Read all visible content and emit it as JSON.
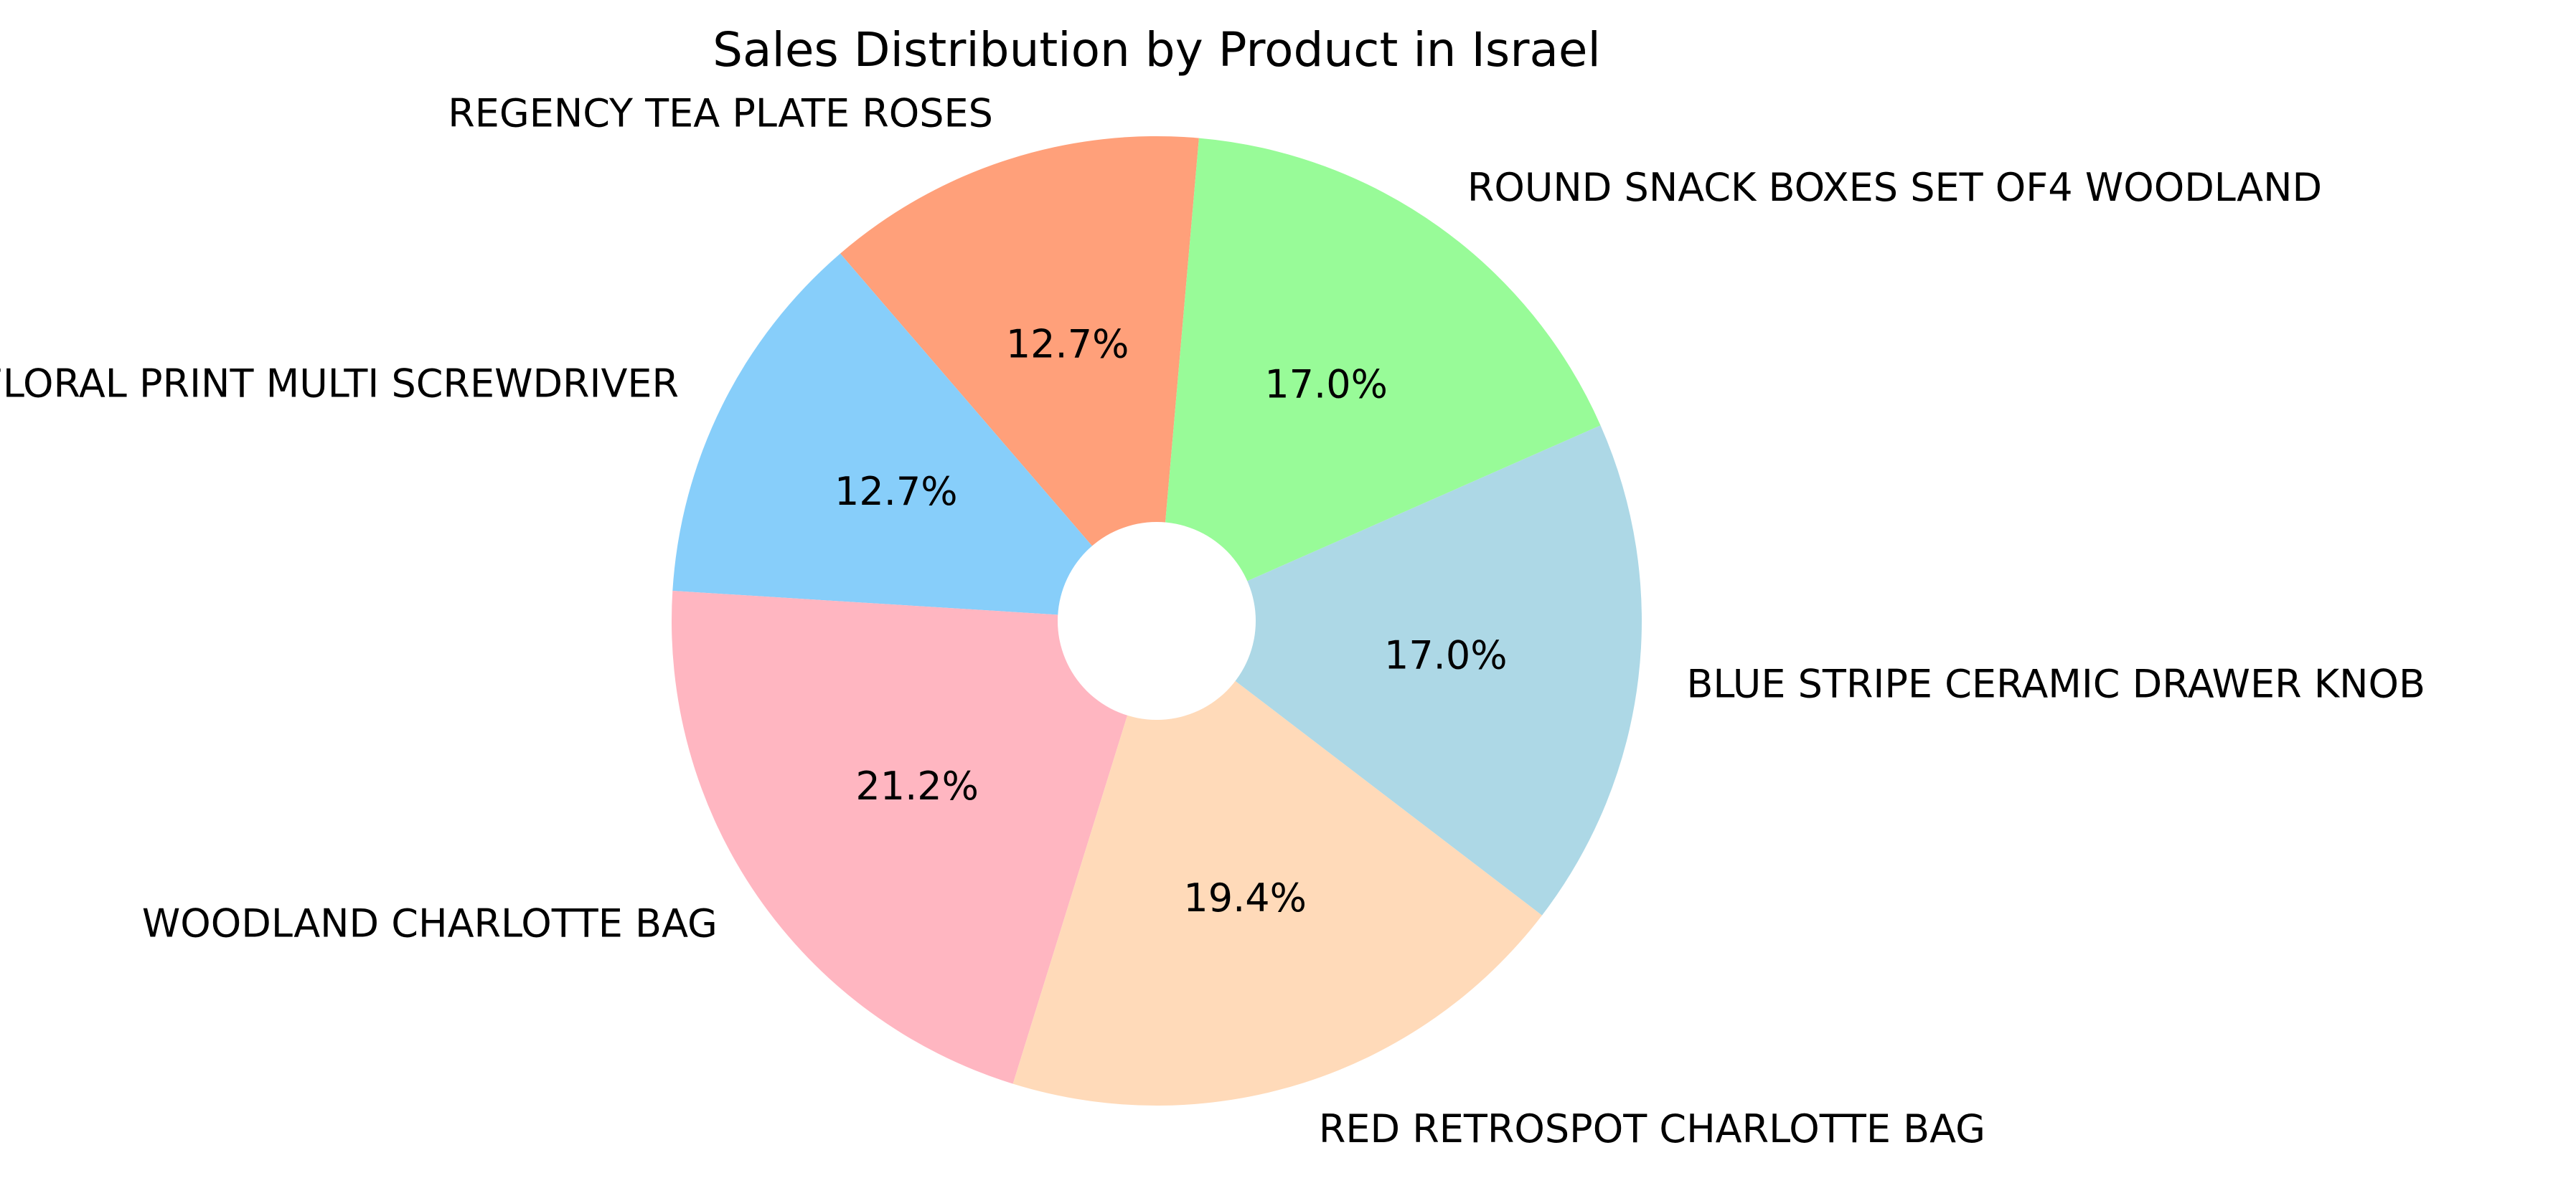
{
  "chart_data": {
    "type": "pie",
    "title": "Sales Distribution by Product in Israel",
    "hole": true,
    "slices": [
      {
        "label": "REGENCY TEA PLATE ROSES",
        "value": 12.7,
        "pct_label": "12.7%",
        "color": "#FFA07A"
      },
      {
        "label": "ASS FLORAL PRINT MULTI SCREWDRIVER",
        "value": 12.7,
        "pct_label": "12.7%",
        "color": "#87CEFA"
      },
      {
        "label": "WOODLAND CHARLOTTE BAG",
        "value": 21.2,
        "pct_label": "21.2%",
        "color": "#FFB6C1"
      },
      {
        "label": "RED RETROSPOT CHARLOTTE BAG",
        "value": 19.4,
        "pct_label": "19.4%",
        "color": "#FFDAB9"
      },
      {
        "label": "BLUE STRIPE CERAMIC DRAWER KNOB",
        "value": 17.0,
        "pct_label": "17.0%",
        "color": "#ADD8E6"
      },
      {
        "label": "ROUND SNACK BOXES SET OF4 WOODLAND",
        "value": 17.0,
        "pct_label": "17.0%",
        "color": "#98FB98"
      }
    ]
  }
}
